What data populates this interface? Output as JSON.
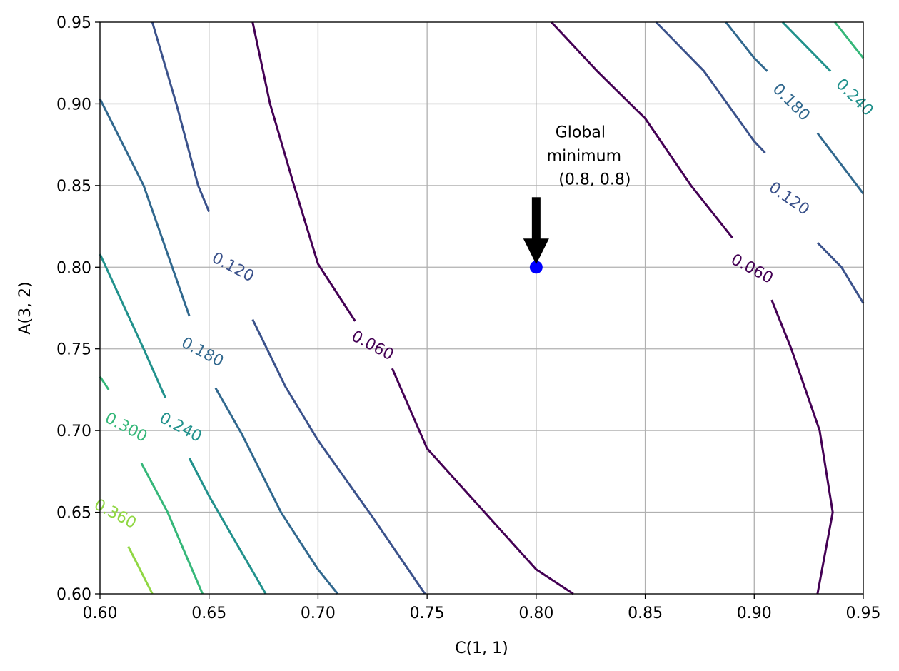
{
  "chart_data": {
    "type": "contour",
    "title": "",
    "xlabel": "C(1, 1)",
    "ylabel": "A(3, 2)",
    "xlim": [
      0.6,
      0.95
    ],
    "ylim": [
      0.6,
      0.95
    ],
    "grid": true,
    "xticks": [
      "0.60",
      "0.65",
      "0.70",
      "0.75",
      "0.80",
      "0.85",
      "0.90",
      "0.95"
    ],
    "yticks": [
      "0.60",
      "0.65",
      "0.70",
      "0.75",
      "0.80",
      "0.85",
      "0.90",
      "0.95"
    ],
    "levels": [
      {
        "label": "0.060",
        "color": "#440154",
        "segments": [
          [
            [
              0.67,
              0.95
            ],
            [
              0.678,
              0.9
            ],
            [
              0.689,
              0.85
            ],
            [
              0.7,
              0.802
            ],
            [
              0.717,
              0.767
            ]
          ],
          [
            [
              0.734,
              0.738
            ],
            [
              0.75,
              0.689
            ],
            [
              0.775,
              0.652
            ],
            [
              0.8,
              0.615
            ],
            [
              0.817,
              0.6
            ]
          ],
          [
            [
              0.807,
              0.95
            ],
            [
              0.828,
              0.92
            ],
            [
              0.85,
              0.891
            ],
            [
              0.871,
              0.85
            ],
            [
              0.89,
              0.818
            ]
          ],
          [
            [
              0.908,
              0.78
            ],
            [
              0.917,
              0.75
            ],
            [
              0.93,
              0.7
            ],
            [
              0.936,
              0.65
            ],
            [
              0.929,
              0.6
            ]
          ]
        ],
        "labels_at": [
          [
            0.725,
            0.752,
            -62
          ],
          [
            0.899,
            0.799,
            -62
          ]
        ]
      },
      {
        "label": "0.120",
        "color": "#3b528b",
        "segments": [
          [
            [
              0.624,
              0.95
            ],
            [
              0.635,
              0.9
            ],
            [
              0.645,
              0.85
            ],
            [
              0.65,
              0.834
            ]
          ],
          [
            [
              0.67,
              0.768
            ],
            [
              0.685,
              0.727
            ],
            [
              0.7,
              0.694
            ],
            [
              0.725,
              0.647
            ],
            [
              0.749,
              0.6
            ]
          ],
          [
            [
              0.855,
              0.95
            ],
            [
              0.877,
              0.92
            ],
            [
              0.9,
              0.877
            ],
            [
              0.905,
              0.87
            ]
          ],
          [
            [
              0.929,
              0.815
            ],
            [
              0.94,
              0.8
            ],
            [
              0.95,
              0.778
            ]
          ]
        ],
        "labels_at": [
          [
            0.661,
            0.8,
            -62
          ],
          [
            0.916,
            0.842,
            -55
          ]
        ]
      },
      {
        "label": "0.180",
        "color": "#31688e",
        "segments": [
          [
            [
              0.6,
              0.903
            ],
            [
              0.62,
              0.85
            ],
            [
              0.641,
              0.77
            ]
          ],
          [
            [
              0.653,
              0.726
            ],
            [
              0.665,
              0.698
            ],
            [
              0.683,
              0.65
            ],
            [
              0.7,
              0.615
            ],
            [
              0.709,
              0.6
            ]
          ],
          [
            [
              0.887,
              0.95
            ],
            [
              0.9,
              0.928
            ],
            [
              0.906,
              0.92
            ]
          ],
          [
            [
              0.929,
              0.882
            ],
            [
              0.95,
              0.845
            ]
          ]
        ],
        "labels_at": [
          [
            0.647,
            0.748,
            -62
          ],
          [
            0.917,
            0.901,
            -45
          ]
        ]
      },
      {
        "label": "0.240",
        "color": "#21918c",
        "segments": [
          [
            [
              0.6,
              0.808
            ],
            [
              0.62,
              0.75
            ],
            [
              0.63,
              0.72
            ]
          ],
          [
            [
              0.641,
              0.683
            ],
            [
              0.65,
              0.66
            ],
            [
              0.676,
              0.6
            ]
          ],
          [
            [
              0.913,
              0.95
            ],
            [
              0.935,
              0.92
            ]
          ]
        ],
        "labels_at": [
          [
            0.637,
            0.702,
            -62
          ],
          [
            0.946,
            0.904,
            -45
          ]
        ]
      },
      {
        "label": "0.300",
        "color": "#35b779",
        "segments": [
          [
            [
              0.6,
              0.733
            ],
            [
              0.604,
              0.725
            ]
          ],
          [
            [
              0.619,
              0.68
            ],
            [
              0.631,
              0.65
            ],
            [
              0.647,
              0.6
            ]
          ],
          [
            [
              0.937,
              0.95
            ],
            [
              0.95,
              0.928
            ]
          ]
        ],
        "labels_at": [
          [
            0.612,
            0.702,
            -62
          ]
        ]
      },
      {
        "label": "0.360",
        "color": "#90d743",
        "segments": [
          [
            [
              0.6,
              0.67
            ],
            [
              0.6,
              0.67
            ]
          ],
          [
            [
              0.613,
              0.629
            ],
            [
              0.624,
              0.6
            ]
          ]
        ],
        "labels_at": [
          [
            0.607,
            0.649,
            -62
          ]
        ]
      }
    ],
    "points": [
      {
        "x": 0.8,
        "y": 0.8,
        "color": "#0000ff"
      }
    ],
    "annotations": [
      {
        "lines": [
          "Global",
          "minimum",
          "(0.8, 0.8)"
        ],
        "arrow_to": [
          0.8,
          0.8
        ],
        "arrow_color": "#000000"
      }
    ]
  }
}
